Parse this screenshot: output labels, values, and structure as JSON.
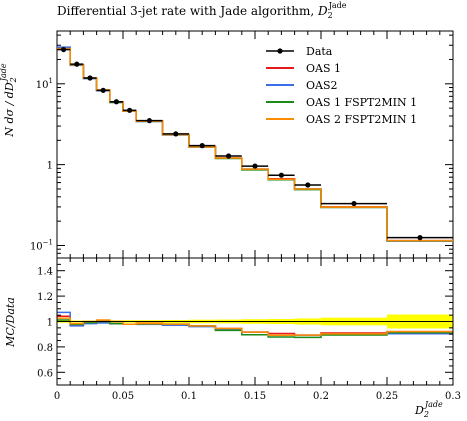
{
  "chart_data": {
    "type": "line",
    "title": "Differential 3-jet rate with Jade algorithm, D_2^Jade",
    "title_main": "Differential 3-jet rate with Jade algorithm, ",
    "title_sym": "D",
    "title_sub": "2",
    "title_sup": "Jade",
    "ylabel_main": "N dσ / dD",
    "ylabel_sub": "2",
    "ylabel_sup": "Jade",
    "ratio_ylabel": "MC/Data",
    "xlabel_sym": "D",
    "xlabel_sub": "2",
    "xlabel_sup": "Jade",
    "xlim": [
      0,
      0.3
    ],
    "ylim": [
      0.07,
      45
    ],
    "yscale": "log",
    "ratio_ylim": [
      0.5,
      1.5
    ],
    "legend_position": "top-right",
    "x_ticks": [
      {
        "v": 0,
        "label": "0"
      },
      {
        "v": 0.05,
        "label": "0.05"
      },
      {
        "v": 0.1,
        "label": "0.1"
      },
      {
        "v": 0.15,
        "label": "0.15"
      },
      {
        "v": 0.2,
        "label": "0.2"
      },
      {
        "v": 0.25,
        "label": "0.25"
      },
      {
        "v": 0.3,
        "label": "0.3"
      }
    ],
    "y_ticks": [
      {
        "v": 0.1,
        "base": "10",
        "exp": "−1"
      },
      {
        "v": 1,
        "base": "1",
        "exp": ""
      },
      {
        "v": 10,
        "base": "10",
        "exp": "1"
      }
    ],
    "ratio_ticks": [
      {
        "v": 0.6,
        "label": "0.6"
      },
      {
        "v": 0.8,
        "label": "0.8"
      },
      {
        "v": 1.0,
        "label": "1"
      },
      {
        "v": 1.2,
        "label": "1.2"
      },
      {
        "v": 1.4,
        "label": "1.4"
      }
    ],
    "bin_edges": [
      0,
      0.01,
      0.02,
      0.03,
      0.04,
      0.05,
      0.06,
      0.08,
      0.1,
      0.12,
      0.14,
      0.16,
      0.18,
      0.2,
      0.25,
      0.3
    ],
    "data": {
      "name": "Data",
      "color": "#000000",
      "x": [
        0.005,
        0.015,
        0.025,
        0.035,
        0.045,
        0.055,
        0.07,
        0.09,
        0.11,
        0.13,
        0.15,
        0.17,
        0.19,
        0.225,
        0.275
      ],
      "y": [
        26.5,
        17.5,
        11.8,
        8.3,
        6.0,
        4.7,
        3.5,
        2.4,
        1.72,
        1.28,
        0.96,
        0.74,
        0.56,
        0.33,
        0.125
      ],
      "xerr": [
        0.005,
        0.005,
        0.005,
        0.005,
        0.005,
        0.005,
        0.01,
        0.01,
        0.01,
        0.01,
        0.01,
        0.01,
        0.01,
        0.025,
        0.025
      ]
    },
    "series": [
      {
        "name": "OAS 1",
        "color": "#e41a1c",
        "values": [
          27.6,
          17.0,
          11.7,
          8.3,
          5.9,
          4.6,
          3.45,
          2.34,
          1.66,
          1.21,
          0.88,
          0.67,
          0.5,
          0.3,
          0.115
        ]
      },
      {
        "name": "OAS2",
        "color": "#3a6fe8",
        "values": [
          28.4,
          16.9,
          11.6,
          8.2,
          5.9,
          4.6,
          3.42,
          2.33,
          1.65,
          1.2,
          0.88,
          0.66,
          0.5,
          0.297,
          0.113
        ]
      },
      {
        "name": "OAS 1 FSPT2MIN 1",
        "color": "#1a8a1a",
        "values": [
          26.8,
          17.1,
          11.7,
          8.3,
          5.9,
          4.6,
          3.43,
          2.35,
          1.66,
          1.19,
          0.86,
          0.65,
          0.49,
          0.295,
          0.114
        ]
      },
      {
        "name": "OAS 2 FSPT2MIN 1",
        "color": "#ff8c00",
        "values": [
          27.2,
          17.2,
          11.8,
          8.4,
          6.0,
          4.6,
          3.44,
          2.35,
          1.66,
          1.21,
          0.88,
          0.66,
          0.5,
          0.298,
          0.115
        ]
      }
    ],
    "ratio_band": {
      "color": "#ffff00",
      "inner_color": "#ffe000",
      "rel_err": [
        0.01,
        0.008,
        0.008,
        0.008,
        0.009,
        0.01,
        0.01,
        0.012,
        0.014,
        0.015,
        0.018,
        0.02,
        0.024,
        0.03,
        0.055
      ]
    }
  }
}
